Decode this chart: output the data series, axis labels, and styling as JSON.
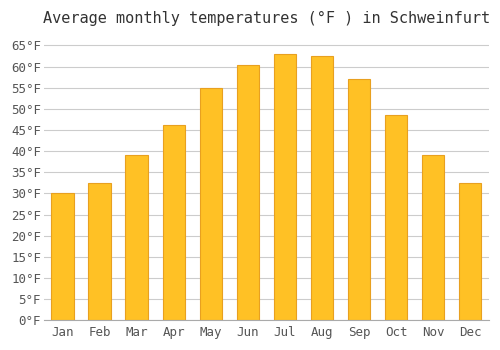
{
  "title": "Average monthly temperatures (°F ) in Schweinfurt",
  "months": [
    "Jan",
    "Feb",
    "Mar",
    "Apr",
    "May",
    "Jun",
    "Jul",
    "Aug",
    "Sep",
    "Oct",
    "Nov",
    "Dec"
  ],
  "values": [
    30.2,
    32.5,
    39.0,
    46.2,
    55.0,
    60.3,
    63.0,
    62.5,
    57.0,
    48.5,
    39.0,
    32.5
  ],
  "bar_color": "#FFC125",
  "bar_edge_color": "#E8A020",
  "background_color": "#ffffff",
  "grid_color": "#cccccc",
  "text_color": "#555555",
  "ylim": [
    0,
    67
  ],
  "yticks": [
    0,
    5,
    10,
    15,
    20,
    25,
    30,
    35,
    40,
    45,
    50,
    55,
    60,
    65
  ],
  "title_fontsize": 11,
  "tick_fontsize": 9,
  "font_family": "monospace"
}
